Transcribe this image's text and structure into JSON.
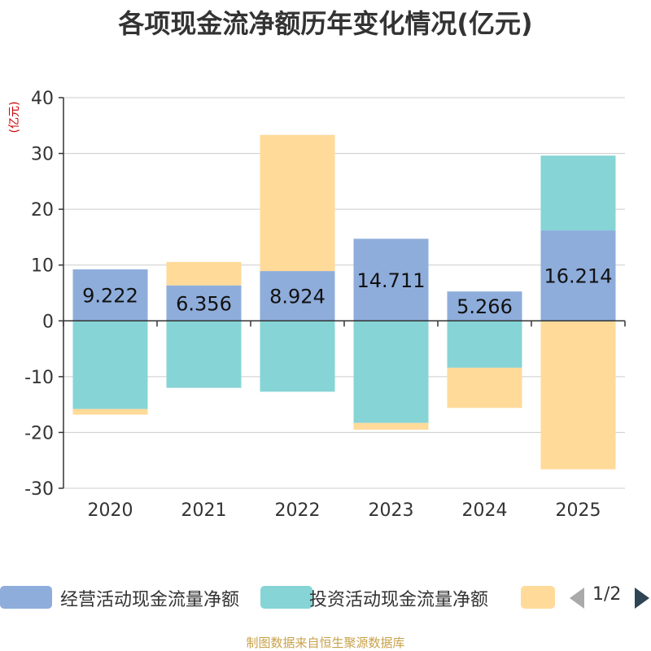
{
  "chart_data": {
    "type": "bar",
    "stacked": true,
    "title": "各项现金流净额历年变化情况(亿元)",
    "ylabel": "(亿元)",
    "ylim": [
      -30,
      40
    ],
    "yticks": [
      40,
      30,
      20,
      10,
      0,
      -10,
      -20,
      -30
    ],
    "categories": [
      "2020",
      "2021",
      "2022",
      "2023",
      "2024",
      "2025"
    ],
    "series": [
      {
        "name": "经营活动现金流量净额",
        "color": "#8eaddb",
        "values": [
          9.222,
          6.356,
          8.924,
          14.711,
          5.266,
          16.214
        ],
        "labels": [
          "9.222",
          "6.356",
          "8.924",
          "14.711",
          "5.266",
          "16.214"
        ]
      },
      {
        "name": "投资活动现金流量净额",
        "color": "#86d4d6",
        "values": [
          -15.8,
          -12.0,
          -12.7,
          -18.3,
          -8.4,
          13.4
        ]
      },
      {
        "name": "",
        "color": "#ffda99",
        "values": [
          -1.0,
          4.2,
          24.4,
          -1.2,
          -7.2,
          -26.6
        ]
      }
    ]
  },
  "legend": {
    "page": "1/2"
  },
  "source": "制图数据来自恒生聚源数据库"
}
